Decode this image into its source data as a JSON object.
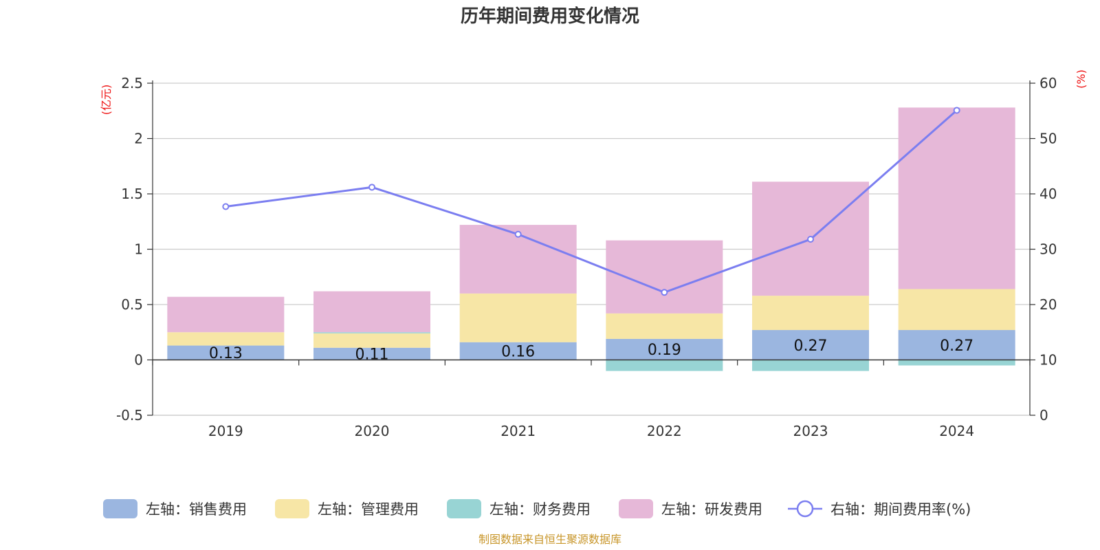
{
  "chart_data": {
    "type": "bar",
    "title": "历年期间费用变化情况",
    "categories": [
      "2019",
      "2020",
      "2021",
      "2022",
      "2023",
      "2024"
    ],
    "left_axis": {
      "unit": "(亿元)",
      "ylim": [
        -0.5,
        2.5
      ],
      "ticks": [
        "-0.5",
        "0",
        "0.5",
        "1",
        "1.5",
        "2",
        "2.5"
      ]
    },
    "right_axis": {
      "unit": "(%)",
      "ylim": [
        0,
        60
      ],
      "ticks": [
        "0",
        "10",
        "20",
        "30",
        "40",
        "50",
        "60"
      ]
    },
    "series": [
      {
        "name": "左轴：销售费用",
        "type": "bar",
        "stack": "pos",
        "color": "#9bb6e0",
        "values": [
          0.13,
          0.11,
          0.16,
          0.19,
          0.27,
          0.27
        ],
        "labels": [
          "0.13",
          "0.11",
          "0.16",
          "0.19",
          "0.27",
          "0.27"
        ]
      },
      {
        "name": "左轴：管理费用",
        "type": "bar",
        "stack": "pos",
        "color": "#f7e6a6",
        "values": [
          0.12,
          0.13,
          0.44,
          0.23,
          0.31,
          0.37
        ]
      },
      {
        "name": "左轴：财务费用",
        "type": "bar",
        "stack": "neg",
        "color": "#98d4d4",
        "values": [
          0.0,
          0.01,
          0.0,
          -0.1,
          -0.1,
          -0.05
        ]
      },
      {
        "name": "左轴：研发费用",
        "type": "bar",
        "stack": "pos",
        "color": "#e6b8d8",
        "values": [
          0.32,
          0.37,
          0.62,
          0.66,
          1.03,
          1.64
        ]
      },
      {
        "name": "右轴：期间费用率(%)",
        "type": "line",
        "axis": "right",
        "color": "#7b7ef0",
        "values": [
          37.7,
          41.2,
          32.7,
          22.2,
          31.8,
          55.1
        ]
      }
    ],
    "grid": true,
    "legend_position": "bottom"
  },
  "source_text": "制图数据来自恒生聚源数据库"
}
